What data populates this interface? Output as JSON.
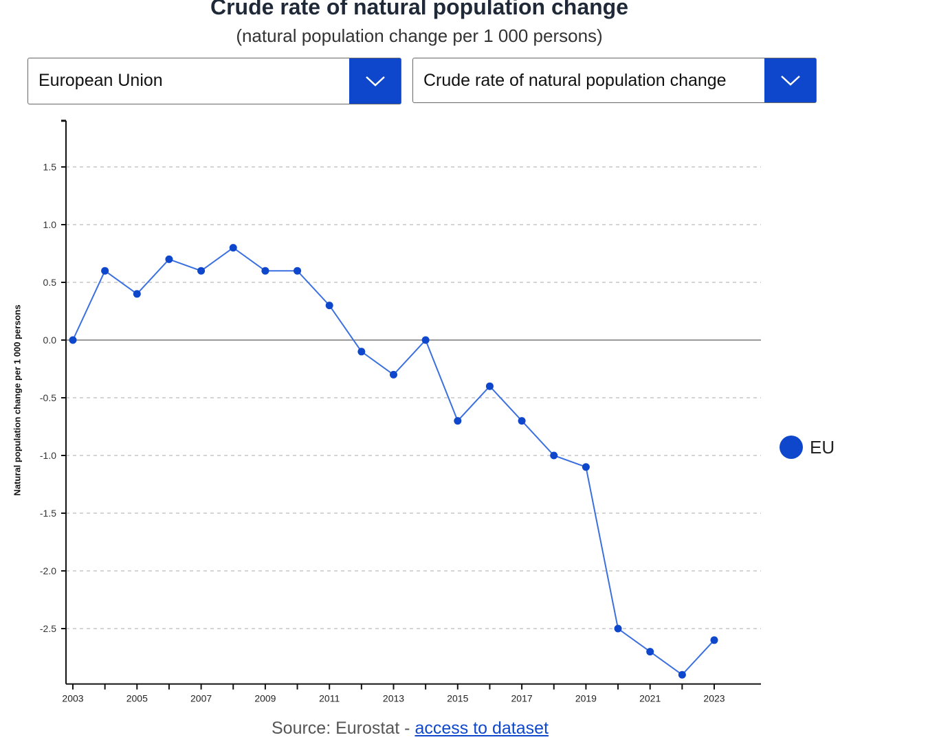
{
  "header": {
    "title": "Crude rate of natural population change",
    "subtitle": "(natural population change per 1 000 persons)"
  },
  "controls": {
    "geo_select": "European Union",
    "indicator_select": "Crude rate of natural population change"
  },
  "footer": {
    "source_prefix": "Source: Eurostat - ",
    "link_text": "access to dataset"
  },
  "colors": {
    "accent": "#0e47cb",
    "line": "#3a6fe0"
  },
  "chart_data": {
    "type": "line",
    "title": "Crude rate of natural population change",
    "xlabel": "",
    "ylabel": "Natural population change per 1 000 persons",
    "x": [
      2003,
      2004,
      2005,
      2006,
      2007,
      2008,
      2009,
      2010,
      2011,
      2012,
      2013,
      2014,
      2015,
      2016,
      2017,
      2018,
      2019,
      2020,
      2021,
      2022,
      2023
    ],
    "series": [
      {
        "name": "EU",
        "values": [
          0.0,
          0.6,
          0.4,
          0.7,
          0.6,
          0.8,
          0.6,
          0.6,
          0.3,
          -0.1,
          -0.3,
          0.0,
          -0.7,
          -0.4,
          -0.7,
          -1.0,
          -1.1,
          -2.5,
          -2.7,
          -2.9,
          -2.6
        ]
      }
    ],
    "yticks": [
      "1.5",
      "1.0",
      "0.5",
      "0.0",
      "-0.5",
      "-1.0",
      "-1.5",
      "-2.0",
      "-2.5"
    ],
    "xticks": [
      "2003",
      "2005",
      "2007",
      "2009",
      "2011",
      "2013",
      "2015",
      "2017",
      "2019",
      "2021",
      "2023"
    ],
    "ylim": [
      -2.98,
      1.9
    ],
    "grid": true,
    "legend": "right"
  }
}
